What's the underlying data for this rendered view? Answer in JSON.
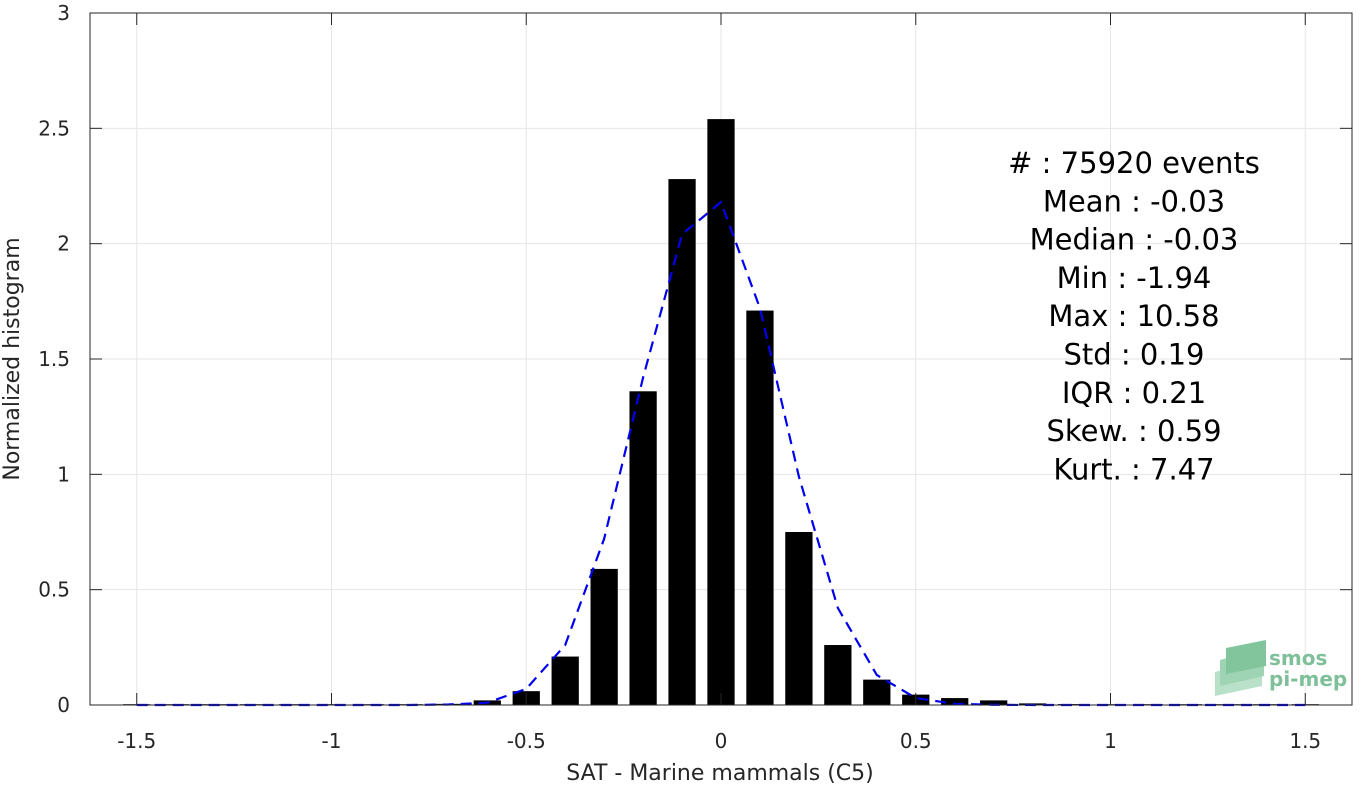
{
  "chart_data": {
    "type": "bar",
    "title": "",
    "xlabel": "SAT - Marine mammals (C5)",
    "ylabel": "Normalized histogram",
    "xlim": [
      -1.62,
      1.62
    ],
    "ylim": [
      0,
      3
    ],
    "x_ticks": [
      -1.5,
      -1,
      -0.5,
      0,
      0.5,
      1,
      1.5
    ],
    "x_tick_labels": [
      "-1.5",
      "-1",
      "-0.5",
      "0",
      "0.5",
      "1",
      "1.5"
    ],
    "y_ticks": [
      0,
      0.5,
      1,
      1.5,
      2,
      2.5,
      3
    ],
    "y_tick_labels": [
      "0",
      "0.5",
      "1",
      "1.5",
      "2",
      "2.5",
      "3"
    ],
    "grid": true,
    "bar_width": 0.07,
    "bar_color": "#000000",
    "fit_color": "#0000ee",
    "bars": {
      "x": [
        -1.5,
        -1.4,
        -1.3,
        -1.2,
        -1.1,
        -1.0,
        -0.9,
        -0.8,
        -0.7,
        -0.6,
        -0.5,
        -0.4,
        -0.3,
        -0.2,
        -0.1,
        0.0,
        0.1,
        0.2,
        0.3,
        0.4,
        0.5,
        0.6,
        0.7,
        0.8,
        0.9,
        1.0,
        1.1,
        1.2,
        1.3,
        1.4,
        1.5
      ],
      "values": [
        0.0,
        0.0,
        0.0,
        0.0,
        0.0,
        0.0,
        0.0,
        0.001,
        0.005,
        0.02,
        0.06,
        0.21,
        0.59,
        1.36,
        2.28,
        2.54,
        1.71,
        0.75,
        0.26,
        0.11,
        0.045,
        0.03,
        0.02,
        0.007,
        0.004,
        0.003,
        0.002,
        0.002,
        0.001,
        0.001,
        0.001
      ]
    },
    "fit": {
      "x": [
        -1.5,
        -1.4,
        -1.3,
        -1.2,
        -1.1,
        -1.0,
        -0.9,
        -0.8,
        -0.7,
        -0.6,
        -0.5,
        -0.4,
        -0.3,
        -0.2,
        -0.1,
        0.0,
        0.1,
        0.2,
        0.3,
        0.4,
        0.5,
        0.6,
        0.7,
        0.8,
        0.9,
        1.0,
        1.1,
        1.2,
        1.3,
        1.4,
        1.5
      ],
      "values": [
        0.0,
        0.0,
        0.0,
        0.0,
        0.0,
        0.0,
        0.0,
        0.0,
        0.002,
        0.01,
        0.07,
        0.26,
        0.72,
        1.42,
        2.04,
        2.18,
        1.72,
        0.99,
        0.42,
        0.13,
        0.03,
        0.005,
        0.001,
        0.0,
        0.0,
        0.0,
        0.0,
        0.0,
        0.0,
        0.0,
        0.0
      ]
    },
    "annotations": [
      "#  : 75920 events",
      "Mean : -0.03",
      "Median : -0.03",
      "Min : -1.94",
      "Max : 10.58",
      "Std : 0.19",
      "IQR : 0.21",
      "Skew. : 0.59",
      "Kurt. : 7.47"
    ],
    "logo": [
      "smos",
      "pi-mep"
    ]
  }
}
